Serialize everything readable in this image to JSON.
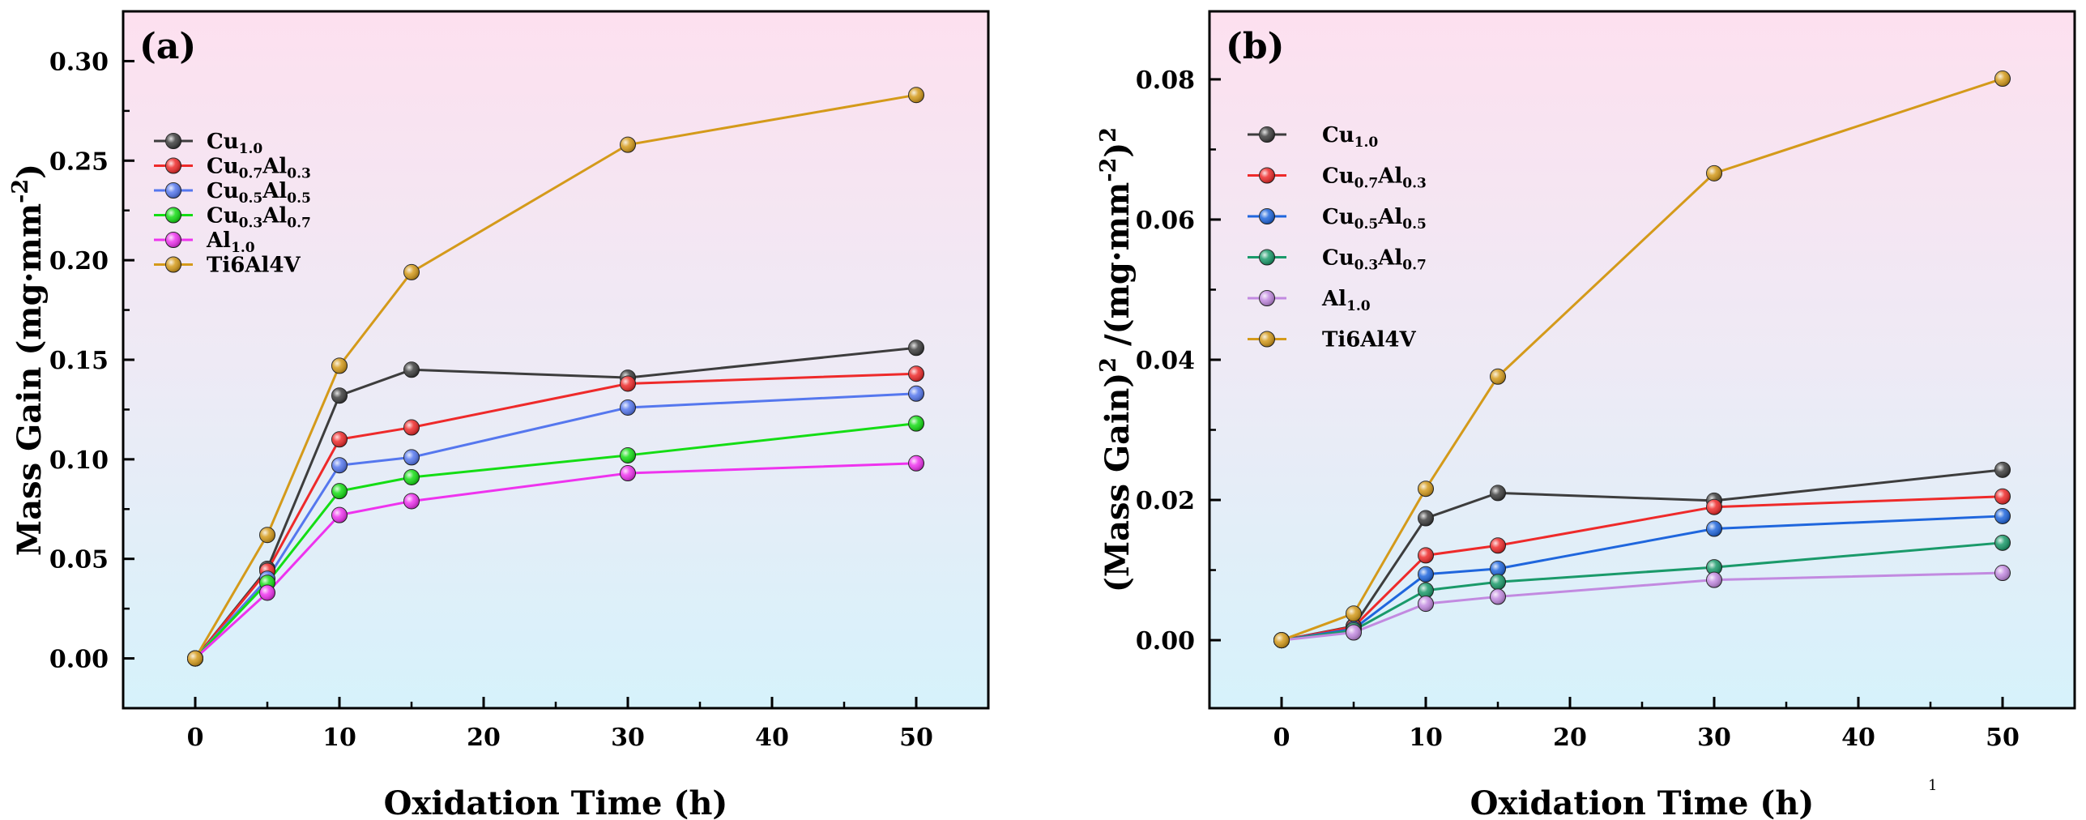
{
  "chart_data": [
    {
      "type": "line",
      "panel_label": "(a)",
      "xlabel": "Oxidation Time (h)",
      "ylabel": "Mass Gain (mg·mm",
      "ylabel_sup": "-2",
      "ylabel_close": ")",
      "xlim": [
        -5,
        55
      ],
      "ylim": [
        -0.025,
        0.325
      ],
      "xticks": [
        0,
        10,
        20,
        30,
        40,
        50
      ],
      "xtick_labels": [
        "0",
        "10",
        "20",
        "30",
        "40",
        "50"
      ],
      "yticks": [
        0,
        0.05,
        0.1,
        0.15,
        0.2,
        0.25,
        0.3
      ],
      "ytick_labels": [
        "0.00",
        "0.05",
        "0.10",
        "0.15",
        "0.20",
        "0.25",
        "0.30"
      ],
      "legend_position": "upper-left",
      "x": [
        0,
        5,
        10,
        15,
        30,
        50
      ],
      "series": [
        {
          "name": "Cu1.0",
          "label_parts": [
            [
              "Cu",
              false
            ],
            [
              "1.0",
              true
            ]
          ],
          "color": "#3d3d3d",
          "values": [
            0,
            0.045,
            0.132,
            0.145,
            0.141,
            0.156
          ]
        },
        {
          "name": "Cu0.7Al0.3",
          "label_parts": [
            [
              "Cu",
              false
            ],
            [
              "0.7",
              true
            ],
            [
              "Al",
              false
            ],
            [
              "0.3",
              true
            ]
          ],
          "color": "#ee2a2a",
          "values": [
            0,
            0.044,
            0.11,
            0.116,
            0.138,
            0.143
          ]
        },
        {
          "name": "Cu0.5Al0.5",
          "label_parts": [
            [
              "Cu",
              false
            ],
            [
              "0.5",
              true
            ],
            [
              "Al",
              false
            ],
            [
              "0.5",
              true
            ]
          ],
          "color": "#5577ee",
          "values": [
            0,
            0.04,
            0.097,
            0.101,
            0.126,
            0.133
          ]
        },
        {
          "name": "Cu0.3Al0.7",
          "label_parts": [
            [
              "Cu",
              false
            ],
            [
              "0.3",
              true
            ],
            [
              "Al",
              false
            ],
            [
              "0.7",
              true
            ]
          ],
          "color": "#14dd14",
          "values": [
            0,
            0.038,
            0.084,
            0.091,
            0.102,
            0.118
          ]
        },
        {
          "name": "Al1.0",
          "label_parts": [
            [
              "Al",
              false
            ],
            [
              "1.0",
              true
            ]
          ],
          "color": "#ee33ee",
          "values": [
            0,
            0.033,
            0.072,
            0.079,
            0.093,
            0.098
          ]
        },
        {
          "name": "Ti6Al4V",
          "label_parts": [
            [
              "Ti6Al4V",
              false
            ]
          ],
          "color": "#d49a1a",
          "values": [
            0,
            0.062,
            0.147,
            0.194,
            0.258,
            0.283
          ]
        }
      ]
    },
    {
      "type": "line",
      "panel_label": "(b)",
      "xlabel": "Oxidation Time (h)",
      "ylabel": "(Mass Gain)",
      "ylabel_sup": "2",
      "ylabel_mid": " /(mg·mm",
      "ylabel_sup2": "-2",
      "ylabel_close": ")",
      "ylabel_sup3": "2",
      "xlim": [
        -5,
        55
      ],
      "ylim": [
        -0.0097,
        0.0897
      ],
      "xticks": [
        0,
        10,
        20,
        30,
        40,
        50
      ],
      "xtick_labels": [
        "0",
        "10",
        "20",
        "30",
        "40",
        "50"
      ],
      "yticks": [
        0,
        0.02,
        0.04,
        0.06,
        0.08
      ],
      "ytick_labels": [
        "0.00",
        "0.02",
        "0.04",
        "0.06",
        "0.08"
      ],
      "legend_position": "upper-left",
      "x": [
        0,
        5,
        10,
        15,
        30,
        50
      ],
      "series": [
        {
          "name": "Cu1.0",
          "label_parts": [
            [
              "Cu",
              false
            ],
            [
              "1.0",
              true
            ]
          ],
          "color": "#3d3d3d",
          "values": [
            0,
            0.002,
            0.0174,
            0.021,
            0.0199,
            0.0243
          ]
        },
        {
          "name": "Cu0.7Al0.3",
          "label_parts": [
            [
              "Cu",
              false
            ],
            [
              "0.7",
              true
            ],
            [
              "Al",
              false
            ],
            [
              "0.3",
              true
            ]
          ],
          "color": "#ee2a2a",
          "values": [
            0,
            0.0019,
            0.0121,
            0.0135,
            0.019,
            0.0205
          ]
        },
        {
          "name": "Cu0.5Al0.5",
          "label_parts": [
            [
              "Cu",
              false
            ],
            [
              "0.5",
              true
            ],
            [
              "Al",
              false
            ],
            [
              "0.5",
              true
            ]
          ],
          "color": "#1f66dd",
          "values": [
            0,
            0.0016,
            0.0094,
            0.0102,
            0.0159,
            0.0177
          ]
        },
        {
          "name": "Cu0.3Al0.7",
          "label_parts": [
            [
              "Cu",
              false
            ],
            [
              "0.3",
              true
            ],
            [
              "Al",
              false
            ],
            [
              "0.7",
              true
            ]
          ],
          "color": "#1a9a6a",
          "values": [
            0,
            0.0014,
            0.0071,
            0.0083,
            0.0104,
            0.0139
          ]
        },
        {
          "name": "Al1.0",
          "label_parts": [
            [
              "Al",
              false
            ],
            [
              "1.0",
              true
            ]
          ],
          "color": "#c28ae0",
          "values": [
            0,
            0.0011,
            0.0052,
            0.0062,
            0.0086,
            0.0096
          ]
        },
        {
          "name": "Ti6Al4V",
          "label_parts": [
            [
              "Ti6Al4V",
              false
            ]
          ],
          "color": "#d49a1a",
          "values": [
            0,
            0.0038,
            0.0216,
            0.0376,
            0.0666,
            0.0801
          ]
        }
      ]
    }
  ],
  "page_number": "1"
}
